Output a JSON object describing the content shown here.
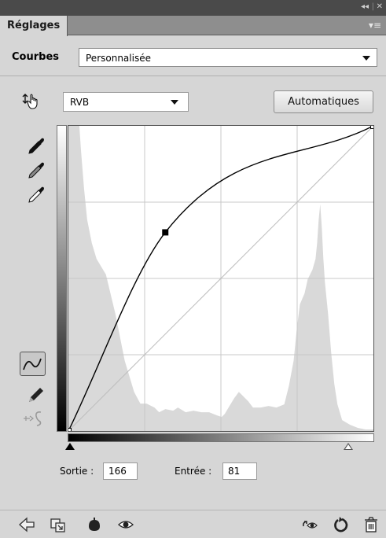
{
  "panel": {
    "tab_label": "Réglages",
    "collapse_glyph": "◂◂",
    "separator_glyph": "|",
    "close_glyph": "✕",
    "menu_glyph": "▾≡"
  },
  "preset": {
    "label": "Courbes",
    "value": "Personnalisée"
  },
  "channel": {
    "value": "RVB"
  },
  "auto_button": "Automatiques",
  "output": {
    "label": "Sortie :",
    "value": "166"
  },
  "input": {
    "label": "Entrée :",
    "value": "81"
  },
  "curve": {
    "points": [
      [
        0,
        0
      ],
      [
        81,
        166
      ],
      [
        255,
        255
      ]
    ],
    "input_range": [
      0,
      255
    ],
    "output_range": [
      0,
      255
    ],
    "grid_divisions": 4
  },
  "left_tools": [
    "target-adjust-icon",
    "black-point-eyedropper-icon",
    "gray-point-eyedropper-icon",
    "white-point-eyedropper-icon",
    "curve-points-tool-icon",
    "pencil-draw-icon",
    "smooth-curve-icon"
  ],
  "bottom_tools": [
    "return-to-list-icon",
    "clip-to-layer-icon",
    "layer-visibility-icon",
    "view-previous-state-icon",
    "view-toggle-icon",
    "reset-icon",
    "delete-icon"
  ],
  "colors": {
    "panel_bg": "#d6d6d6",
    "titlebar_bg": "#4a4a4a",
    "tabbar_bg": "#8e8e8e",
    "histogram": "#d9d9d9",
    "grid": "#c8c8c8",
    "curve": "#000000"
  }
}
